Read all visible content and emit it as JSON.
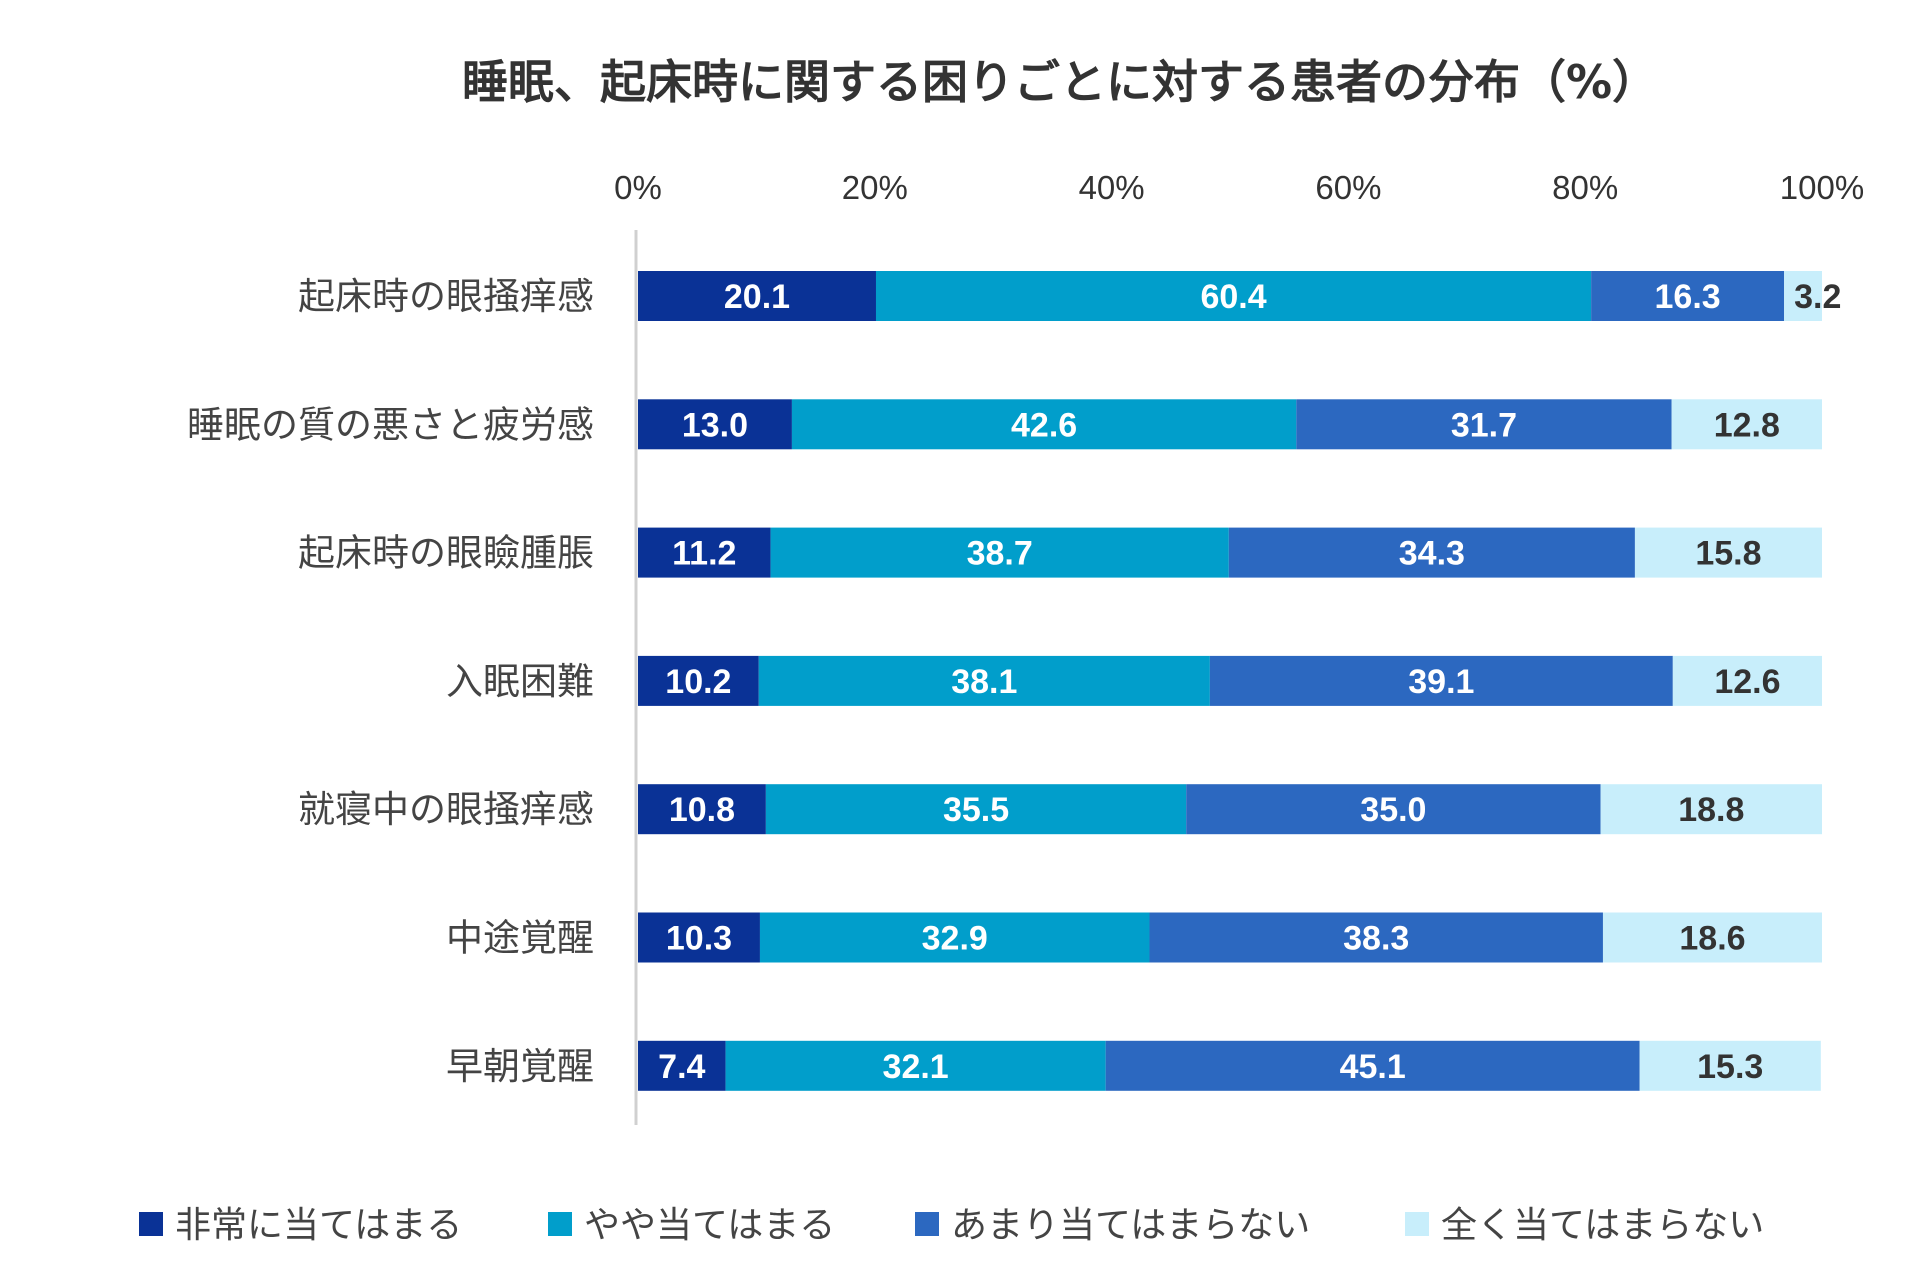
{
  "chart_data": {
    "type": "bar",
    "orientation": "horizontal",
    "stacked": true,
    "title": "睡眠、起床時に関する困りごとに対する患者の分布（%）",
    "xlim": [
      0,
      100
    ],
    "x_ticks": [
      "0%",
      "20%",
      "40%",
      "60%",
      "80%",
      "100%"
    ],
    "categories": [
      "起床時の眼掻痒感",
      "睡眠の質の悪さと疲労感",
      "起床時の眼瞼腫脹",
      "入眠困難",
      "就寝中の眼掻痒感",
      "中途覚醒",
      "早朝覚醒"
    ],
    "series": [
      {
        "name": "非常に当てはまる",
        "color": "#0A3296",
        "label_color": "#ffffff",
        "values": [
          20.1,
          13.0,
          11.2,
          10.2,
          10.8,
          10.3,
          7.4
        ],
        "labels": [
          "20.1",
          "13.0",
          "11.2",
          "10.2",
          "10.8",
          "10.3",
          "7.4"
        ]
      },
      {
        "name": "やや当てはまる",
        "color": "#019ECB",
        "label_color": "#ffffff",
        "values": [
          60.4,
          42.6,
          38.7,
          38.1,
          35.5,
          32.9,
          32.1
        ],
        "labels": [
          "60.4",
          "42.6",
          "38.7",
          "38.1",
          "35.5",
          "32.9",
          "32.1"
        ]
      },
      {
        "name": "あまり当てはまらない",
        "color": "#2C68C0",
        "label_color": "#ffffff",
        "values": [
          16.3,
          31.7,
          34.3,
          39.1,
          35.0,
          38.3,
          45.1
        ],
        "labels": [
          "16.3",
          "31.7",
          "34.3",
          "39.1",
          "35.0",
          "38.3",
          "45.1"
        ]
      },
      {
        "name": "全く当てはまらない",
        "color": "#C8EEFB",
        "label_color": "#333333",
        "values": [
          3.2,
          12.8,
          15.8,
          12.6,
          18.8,
          18.6,
          15.3
        ],
        "labels": [
          "3.2",
          "12.8",
          "15.8",
          "12.6",
          "18.8",
          "18.6",
          "15.3"
        ]
      }
    ],
    "legend_position": "bottom",
    "grid": false
  }
}
